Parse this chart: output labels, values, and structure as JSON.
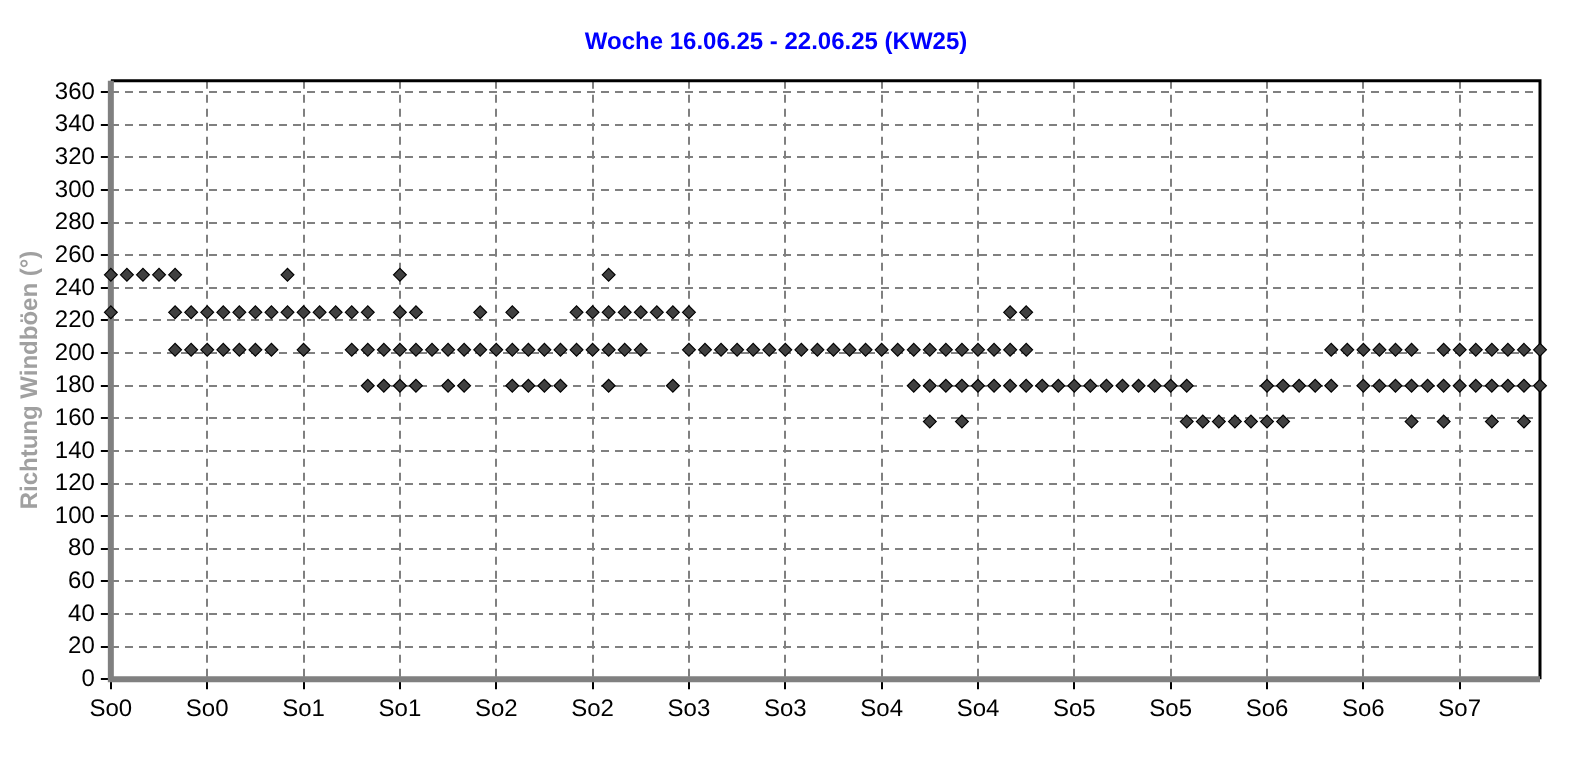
{
  "chart_data": {
    "type": "scatter",
    "title": "Woche 16.06.25 - 22.06.25 (KW25)",
    "ylabel": "Richtung Windböen (°)",
    "categories": [
      "So0",
      null,
      null,
      null,
      null,
      null,
      "So0",
      null,
      null,
      null,
      null,
      null,
      "So1",
      null,
      null,
      null,
      null,
      null,
      "So1",
      null,
      null,
      null,
      null,
      null,
      "So2",
      null,
      null,
      null,
      null,
      null,
      "So2",
      null,
      null,
      null,
      null,
      null,
      "So3",
      null,
      null,
      null,
      null,
      null,
      "So3",
      null,
      null,
      null,
      null,
      null,
      "So4",
      null,
      null,
      null,
      null,
      null,
      "So4",
      null,
      null,
      null,
      null,
      null,
      "So5",
      null,
      null,
      null,
      null,
      null,
      "So5",
      null,
      null,
      null,
      null,
      null,
      "So6",
      null,
      null,
      null,
      null,
      null,
      "So6",
      null,
      null,
      null,
      null,
      null,
      "So7",
      null,
      null,
      null,
      null,
      null
    ],
    "ylim": [
      0,
      367
    ],
    "yticks": [
      0,
      20,
      40,
      60,
      80,
      100,
      120,
      140,
      160,
      180,
      200,
      220,
      240,
      260,
      280,
      300,
      320,
      340,
      360
    ],
    "grid": true,
    "legend": false,
    "marker": "diamond",
    "series": [
      {
        "color": "#404040",
        "values": [
          248,
          248,
          248,
          248,
          248,
          null,
          null,
          null,
          null,
          null,
          null,
          248,
          null,
          null,
          null,
          null,
          null,
          null,
          248,
          null,
          null,
          null,
          null,
          null,
          null,
          null,
          null,
          null,
          null,
          null,
          null,
          248,
          null,
          null,
          null,
          null,
          null,
          null,
          null,
          null,
          null,
          null,
          null,
          null,
          null,
          null,
          null,
          null,
          null,
          null,
          null,
          null,
          null,
          null,
          null,
          null,
          null,
          null,
          null,
          null,
          null,
          null,
          null,
          null,
          null,
          null,
          null,
          null,
          null,
          null,
          null,
          null,
          null,
          null,
          null,
          null,
          null,
          null,
          null,
          null,
          null,
          null,
          null,
          null,
          null,
          null,
          null,
          null,
          null,
          null
        ]
      },
      {
        "color": "#404040",
        "values": [
          225,
          null,
          null,
          null,
          225,
          225,
          225,
          225,
          225,
          225,
          225,
          225,
          225,
          225,
          225,
          225,
          225,
          null,
          225,
          225,
          null,
          null,
          null,
          225,
          null,
          225,
          null,
          null,
          null,
          225,
          225,
          225,
          225,
          225,
          225,
          225,
          225,
          null,
          null,
          null,
          null,
          null,
          null,
          null,
          null,
          null,
          null,
          null,
          null,
          null,
          null,
          null,
          null,
          null,
          null,
          null,
          225,
          225,
          null,
          null,
          null,
          null,
          null,
          null,
          null,
          null,
          null,
          null,
          null,
          null,
          null,
          null,
          null,
          null,
          null,
          null,
          null,
          null,
          null,
          null,
          null,
          null,
          null,
          null,
          null,
          null,
          null,
          null,
          null,
          null
        ]
      },
      {
        "color": "#404040",
        "values": [
          null,
          null,
          null,
          null,
          202,
          202,
          202,
          202,
          202,
          202,
          202,
          null,
          202,
          null,
          null,
          202,
          202,
          202,
          202,
          202,
          202,
          202,
          202,
          202,
          202,
          202,
          202,
          202,
          202,
          202,
          202,
          202,
          202,
          202,
          null,
          null,
          202,
          202,
          202,
          202,
          202,
          202,
          202,
          202,
          202,
          202,
          202,
          202,
          202,
          202,
          202,
          202,
          202,
          202,
          202,
          202,
          202,
          202,
          null,
          null,
          null,
          null,
          null,
          null,
          null,
          null,
          null,
          null,
          null,
          null,
          null,
          null,
          null,
          null,
          null,
          null,
          202,
          202,
          202,
          202,
          202,
          202,
          null,
          202,
          202,
          202,
          202,
          202,
          202,
          202
        ]
      },
      {
        "color": "#404040",
        "values": [
          null,
          null,
          null,
          null,
          null,
          null,
          null,
          null,
          null,
          null,
          null,
          null,
          null,
          null,
          null,
          null,
          180,
          180,
          180,
          180,
          null,
          180,
          180,
          null,
          null,
          180,
          180,
          180,
          180,
          null,
          null,
          180,
          null,
          null,
          null,
          180,
          null,
          null,
          null,
          null,
          null,
          null,
          null,
          null,
          null,
          null,
          null,
          null,
          null,
          null,
          180,
          180,
          180,
          180,
          180,
          180,
          180,
          180,
          180,
          180,
          180,
          180,
          180,
          180,
          180,
          180,
          180,
          180,
          null,
          null,
          null,
          null,
          180,
          180,
          180,
          180,
          180,
          null,
          180,
          180,
          180,
          180,
          180,
          180,
          180,
          180,
          180,
          180,
          180,
          180
        ]
      },
      {
        "color": "#404040",
        "values": [
          null,
          null,
          null,
          null,
          null,
          null,
          null,
          null,
          null,
          null,
          null,
          null,
          null,
          null,
          null,
          null,
          null,
          null,
          null,
          null,
          null,
          null,
          null,
          null,
          null,
          null,
          null,
          null,
          null,
          null,
          null,
          null,
          null,
          null,
          null,
          null,
          null,
          null,
          null,
          null,
          null,
          null,
          null,
          null,
          null,
          null,
          null,
          null,
          null,
          null,
          null,
          158,
          null,
          158,
          null,
          null,
          null,
          null,
          null,
          null,
          null,
          null,
          null,
          null,
          null,
          null,
          null,
          158,
          158,
          158,
          158,
          158,
          158,
          158,
          null,
          null,
          null,
          null,
          null,
          null,
          null,
          158,
          null,
          158,
          null,
          null,
          158,
          null,
          158,
          null
        ]
      }
    ]
  }
}
